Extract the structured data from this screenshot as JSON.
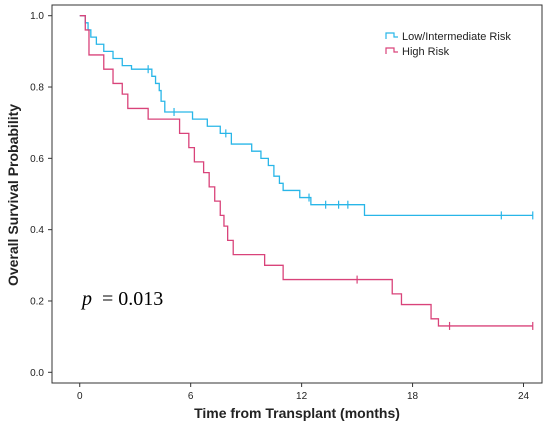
{
  "chart_data": {
    "type": "line",
    "title": "",
    "xlabel": "Time from Transplant (months)",
    "ylabel": "Overall Survival Probability",
    "xlim": [
      -1.5,
      25
    ],
    "ylim": [
      -0.03,
      1.03
    ],
    "x_ticks": [
      0,
      6,
      12,
      18,
      24
    ],
    "x_tick_labels": [
      "0",
      "6",
      "12",
      "18",
      "24"
    ],
    "y_ticks": [
      0.0,
      0.2,
      0.4,
      0.6,
      0.8,
      1.0
    ],
    "y_tick_labels": [
      "0.0",
      "0.2",
      "0.4",
      "0.6",
      "0.8",
      "1.0"
    ],
    "grid": false,
    "legend_position": "top-right",
    "annotation": {
      "p_symbol": "p",
      "p_text": "= 0.013"
    },
    "series": [
      {
        "name": "Low/Intermediate Risk",
        "color": "#29b6e8",
        "step": [
          [
            0,
            1.0
          ],
          [
            0.3,
            0.98
          ],
          [
            0.45,
            0.96
          ],
          [
            0.6,
            0.94
          ],
          [
            0.9,
            0.92
          ],
          [
            1.3,
            0.9
          ],
          [
            1.8,
            0.88
          ],
          [
            2.3,
            0.86
          ],
          [
            2.8,
            0.85
          ],
          [
            3.9,
            0.83
          ],
          [
            4.1,
            0.81
          ],
          [
            4.3,
            0.79
          ],
          [
            4.4,
            0.76
          ],
          [
            4.6,
            0.73
          ],
          [
            6.1,
            0.71
          ],
          [
            6.9,
            0.69
          ],
          [
            7.6,
            0.67
          ],
          [
            8.2,
            0.64
          ],
          [
            9.3,
            0.62
          ],
          [
            9.8,
            0.6
          ],
          [
            10.2,
            0.58
          ],
          [
            10.5,
            0.55
          ],
          [
            10.8,
            0.53
          ],
          [
            11.0,
            0.51
          ],
          [
            11.9,
            0.49
          ],
          [
            12.5,
            0.47
          ],
          [
            15.4,
            0.44
          ],
          [
            24.5,
            0.44
          ]
        ],
        "censors": [
          [
            3.7,
            0.85
          ],
          [
            5.1,
            0.73
          ],
          [
            7.9,
            0.67
          ],
          [
            12.4,
            0.49
          ],
          [
            13.3,
            0.47
          ],
          [
            14.0,
            0.47
          ],
          [
            14.5,
            0.47
          ],
          [
            22.8,
            0.44
          ],
          [
            24.5,
            0.44
          ]
        ]
      },
      {
        "name": "High Risk",
        "color": "#d9437a",
        "step": [
          [
            0,
            1.0
          ],
          [
            0.3,
            0.96
          ],
          [
            0.5,
            0.89
          ],
          [
            1.3,
            0.85
          ],
          [
            1.8,
            0.81
          ],
          [
            2.3,
            0.78
          ],
          [
            2.6,
            0.74
          ],
          [
            3.7,
            0.71
          ],
          [
            5.4,
            0.67
          ],
          [
            5.9,
            0.63
          ],
          [
            6.2,
            0.59
          ],
          [
            6.7,
            0.56
          ],
          [
            7.0,
            0.52
          ],
          [
            7.3,
            0.48
          ],
          [
            7.6,
            0.44
          ],
          [
            7.8,
            0.41
          ],
          [
            8.0,
            0.37
          ],
          [
            8.3,
            0.33
          ],
          [
            10.0,
            0.3
          ],
          [
            11.0,
            0.26
          ],
          [
            16.9,
            0.22
          ],
          [
            17.4,
            0.19
          ],
          [
            19.0,
            0.15
          ],
          [
            19.4,
            0.13
          ],
          [
            24.5,
            0.13
          ]
        ],
        "censors": [
          [
            15.0,
            0.26
          ],
          [
            20.0,
            0.13
          ],
          [
            24.5,
            0.13
          ]
        ]
      }
    ]
  }
}
